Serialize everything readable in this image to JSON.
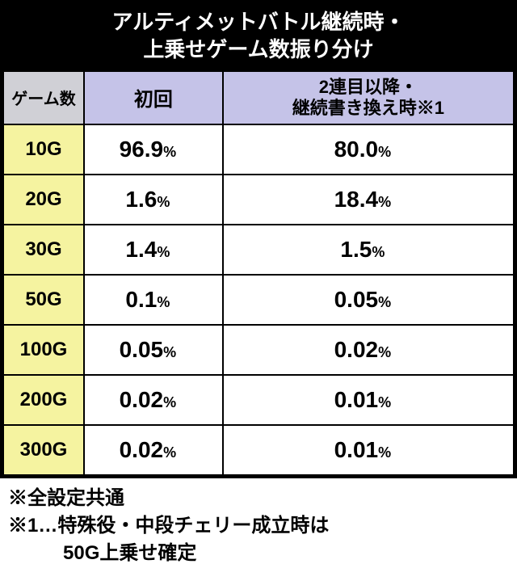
{
  "title_line1": "アルティメットバトル継続時・",
  "title_line2": "上乗せゲーム数振り分け",
  "headers": {
    "games": "ゲーム数",
    "col1": "初回",
    "col2_line1": "2連目以降・",
    "col2_line2": "継続書き換え時※1"
  },
  "rows": [
    {
      "label": "10G",
      "v1": "96.9",
      "v2": "80.0"
    },
    {
      "label": "20G",
      "v1": "1.6",
      "v2": "18.4"
    },
    {
      "label": "30G",
      "v1": "1.4",
      "v2": "1.5"
    },
    {
      "label": "50G",
      "v1": "0.1",
      "v2": "0.05"
    },
    {
      "label": "100G",
      "v1": "0.05",
      "v2": "0.02"
    },
    {
      "label": "200G",
      "v1": "0.02",
      "v2": "0.01"
    },
    {
      "label": "300G",
      "v1": "0.02",
      "v2": "0.01"
    }
  ],
  "pct": "%",
  "note1": "※全設定共通",
  "note2_line1": "※1…特殊役・中段チェリー成立時は",
  "note2_line2": "50G上乗せ確定",
  "colors": {
    "title_bg": "#000000",
    "title_fg": "#ffffff",
    "header_games_bg": "#d0d0d6",
    "header_col_bg": "#c5c3e8",
    "row_label_bg": "#f5f3a0",
    "cell_bg": "#ffffff",
    "border": "#000000"
  }
}
